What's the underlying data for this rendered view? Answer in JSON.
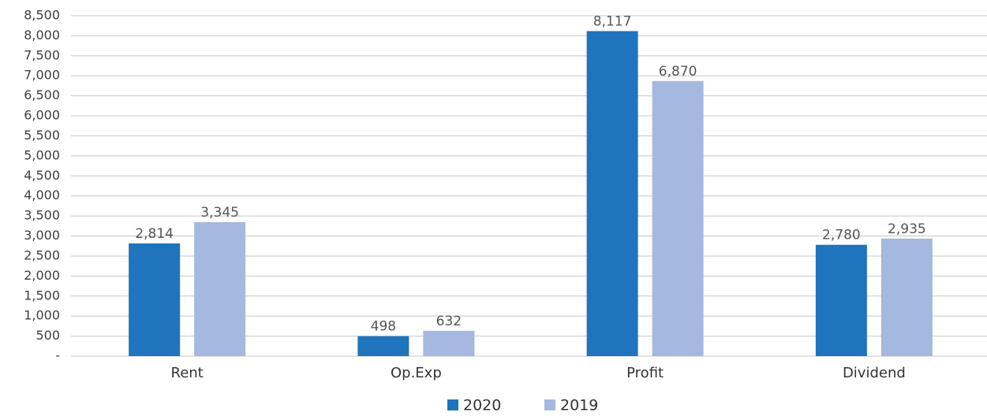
{
  "chart_data": {
    "type": "bar",
    "categories": [
      "Rent",
      "Op.Exp",
      "Profit",
      "Dividend"
    ],
    "series": [
      {
        "name": "2020",
        "color": "#1f74bd",
        "values": [
          2814,
          498,
          8117,
          2780
        ],
        "value_labels": [
          "2,814",
          "498",
          "8,117",
          "2,780"
        ]
      },
      {
        "name": "2019",
        "color": "#a4b8e0",
        "values": [
          3345,
          632,
          6870,
          2935
        ],
        "value_labels": [
          "3,345",
          "632",
          "6,870",
          "2,935"
        ]
      }
    ],
    "ylim": [
      0,
      8500
    ],
    "yticks": [
      {
        "value": 0,
        "label": "-"
      },
      500,
      {
        "value": 1000,
        "label": "1,000"
      },
      {
        "value": 1500,
        "label": "1,500"
      },
      {
        "value": 2000,
        "label": "2,000"
      },
      {
        "value": 2500,
        "label": "2,500"
      },
      {
        "value": 3000,
        "label": "3,000"
      },
      {
        "value": 3500,
        "label": "3,500"
      },
      {
        "value": 4000,
        "label": "4,000"
      },
      {
        "value": 4500,
        "label": "4,500"
      },
      {
        "value": 5000,
        "label": "5,000"
      },
      {
        "value": 5500,
        "label": "5,500"
      },
      {
        "value": 6000,
        "label": "6,000"
      },
      {
        "value": 6500,
        "label": "6,500"
      },
      {
        "value": 7000,
        "label": "7,000"
      },
      {
        "value": 7500,
        "label": "7,500"
      },
      {
        "value": 8000,
        "label": "8,000"
      },
      {
        "value": 8500,
        "label": "8,500"
      }
    ],
    "grid": true,
    "legend": "bottom"
  }
}
